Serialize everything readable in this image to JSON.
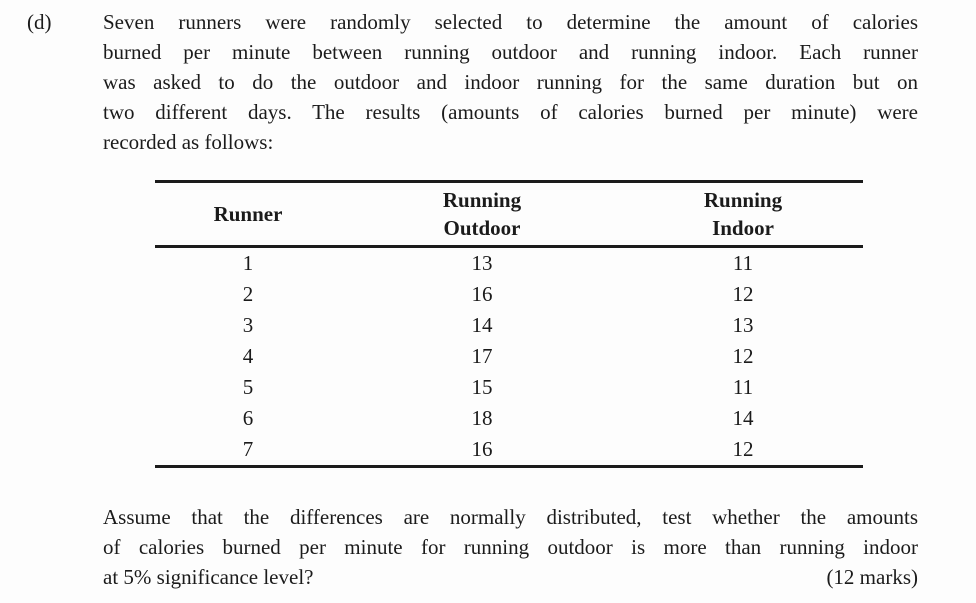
{
  "page": {
    "label": "(d)",
    "intro": {
      "lines": [
        "Seven runners were randomly selected to determine the amount of calories",
        "burned per minute between running outdoor and running indoor. Each runner",
        "was asked to do the outdoor and indoor running for the same duration but on",
        "two different days. The results (amounts of calories burned per minute) were",
        "recorded as follows:"
      ]
    },
    "table": {
      "headers": {
        "runner": "Runner",
        "outdoor": "Running\nOutdoor",
        "indoor": "Running\nIndoor"
      },
      "rows": [
        [
          "1",
          "13",
          "11"
        ],
        [
          "2",
          "16",
          "12"
        ],
        [
          "3",
          "14",
          "13"
        ],
        [
          "4",
          "17",
          "12"
        ],
        [
          "5",
          "15",
          "11"
        ],
        [
          "6",
          "18",
          "14"
        ],
        [
          "7",
          "16",
          "12"
        ]
      ]
    },
    "question": {
      "lines": [
        "Assume that the differences are normally distributed, test whether the amounts",
        "of calories burned per minute for running outdoor is more than running indoor",
        "at 5% significance level?"
      ],
      "marks": "(12 marks)"
    },
    "colors": {
      "text": "#1b1b1b",
      "background": "#fdfdfd",
      "rule": "#1b1b1b"
    }
  }
}
